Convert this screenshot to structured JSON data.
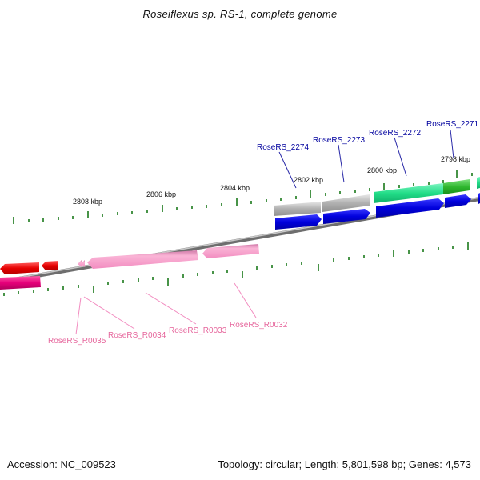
{
  "title": "Roseiflexus sp. RS-1, complete genome",
  "footer": {
    "accession_label": "Accession:",
    "accession": "NC_009523",
    "topology_label": "Topology:",
    "topology": "circular",
    "length_label": "Length:",
    "length": "5,801,598 bp",
    "genes_label": "Genes:",
    "genes": "4,573"
  },
  "colors": {
    "backbone": "#8c8c8c",
    "tick": "#1a7a1a",
    "cds": "#0000dd",
    "forward_gene_label": "#00009e",
    "reverse_gene_label": "#e6669c",
    "rrna_gray": "#b4b4b4",
    "green_feature": "#22dd88",
    "trna_red": "#e60000",
    "pink_feature": "#f2a0c8",
    "magenta_feature": "#e6007a"
  },
  "scale_labels": [
    {
      "id": "2808",
      "text": "2808 kbp"
    },
    {
      "id": "2806",
      "text": "2806 kbp"
    },
    {
      "id": "2804",
      "text": "2804 kbp"
    },
    {
      "id": "2802",
      "text": "2802 kbp"
    },
    {
      "id": "2800",
      "text": "2800 kbp"
    },
    {
      "id": "2798",
      "text": "2798 kbp"
    }
  ],
  "gene_labels": {
    "forward": [
      "RoseRS_2274",
      "RoseRS_2273",
      "RoseRS_2272",
      "RoseRS_2271"
    ],
    "reverse": [
      "RoseRS_R0035",
      "RoseRS_R0034",
      "RoseRS_R0033",
      "RoseRS_R0032"
    ]
  }
}
